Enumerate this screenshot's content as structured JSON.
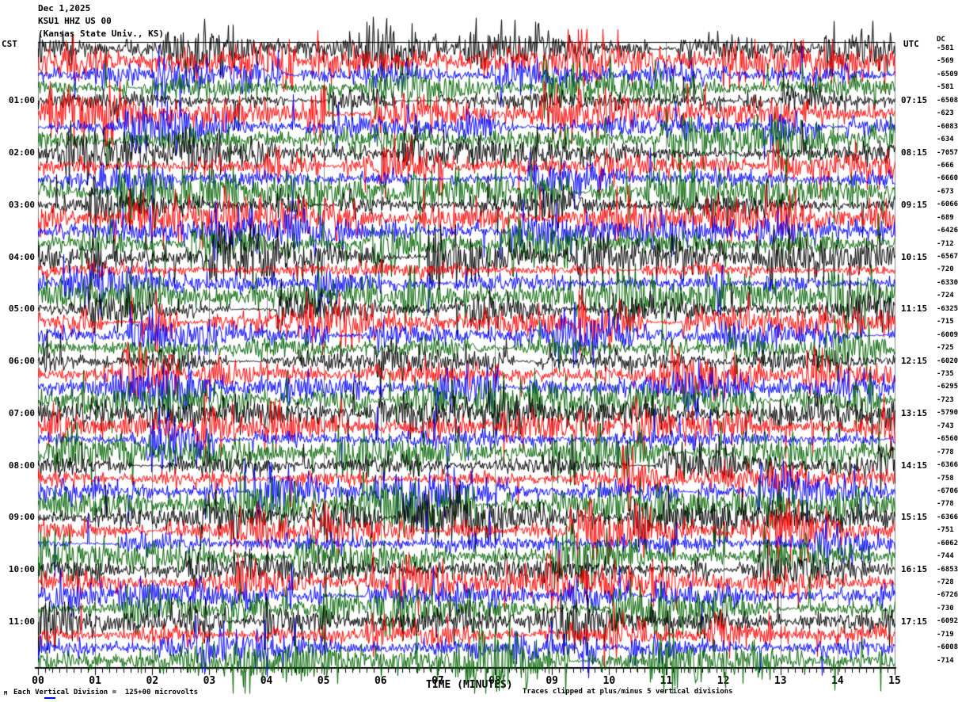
{
  "header": {
    "date": "Dec 1,2025",
    "station": "KSU1 HHZ US 00",
    "location": "(Kansas State Univ., KS)"
  },
  "left_axis": {
    "timezone": "CST",
    "hours": [
      "01:00",
      "02:00",
      "03:00",
      "04:00",
      "05:00",
      "06:00",
      "07:00",
      "08:00",
      "09:00",
      "10:00",
      "11:00"
    ]
  },
  "right_axis": {
    "timezone": "UTC",
    "dc_label": "DC",
    "hours": [
      "07:15",
      "08:15",
      "09:15",
      "10:15",
      "11:15",
      "12:15",
      "13:15",
      "14:15",
      "15:15",
      "16:15",
      "17:15"
    ],
    "dc_values": [
      "-581",
      "-569",
      "-6509",
      "-581",
      "-6508",
      "-623",
      "-6083",
      "-634",
      "-7057",
      "-666",
      "-6660",
      "-673",
      "-6066",
      "-689",
      "-6426",
      "-712",
      "-6567",
      "-720",
      "-6330",
      "-724",
      "-6325",
      "-715",
      "-6009",
      "-725",
      "-6020",
      "-735",
      "-6295",
      "-723",
      "-5790",
      "-743",
      "-6560",
      "-778",
      "-6366",
      "-758",
      "-6706",
      "-778",
      "-6366",
      "-751",
      "-6062",
      "-744",
      "-6853",
      "-728",
      "-6726",
      "-730",
      "-6092",
      "-719",
      "-6008",
      "-714"
    ]
  },
  "x_axis": {
    "title": "TIME (MINUTES)",
    "ticks": [
      "00",
      "01",
      "02",
      "03",
      "04",
      "05",
      "06",
      "07",
      "08",
      "09",
      "10",
      "11",
      "12",
      "13",
      "14",
      "15"
    ]
  },
  "footer": {
    "scale_note": "Each Vertical Division =  125+00 microvolts",
    "clip_note": "Traces clipped at plus/minus 5 vertical divisions",
    "corner_glyph": "M"
  },
  "chart_data": {
    "type": "seismogram-helicorder",
    "station_code": "KSU1 HHZ US 00",
    "station_location": "Kansas State Univ., KS",
    "date": "Dec 1,2025",
    "rows": 48,
    "rows_per_hour": 4,
    "minutes_per_row": 15,
    "x_range_minutes": [
      0,
      15
    ],
    "start_time_cst": "00:00",
    "end_time_cst": "12:00",
    "utc_offset_hours": -6,
    "trace_color_cycle": [
      "#000000",
      "#ff0000",
      "#0000ff",
      "#006400"
    ],
    "grid_color": "#8a8a8a",
    "microvolts_per_division": "125+00",
    "clip_divisions": 5,
    "legend": "continuous high-amplitude broadband noise on every 15-minute trace, frequently clipped at plus/minus 5 vertical divisions",
    "grid": "vertical gray line each minute",
    "legend_position": "none"
  }
}
